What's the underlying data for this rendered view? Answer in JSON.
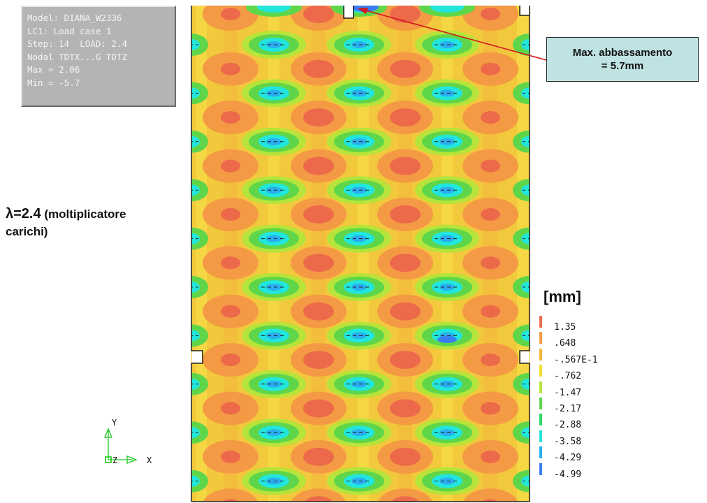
{
  "info": {
    "lines": [
      "Model: DIANA_W2336",
      "LC1: Load case 1",
      "Step: 14  LOAD: 2.4",
      "Nodal TDTX...G TDTZ",
      "Max = 2.06",
      "Min = -5.7"
    ]
  },
  "annotation": {
    "lambda_symbol_value": "λ=2.4",
    "lambda_desc_part1": " (moltiplicatore",
    "lambda_desc_part2": "carichi)",
    "callout_line1": "Max. abbassamento",
    "callout_line2": "= 5.7mm"
  },
  "legend": {
    "unit": "[mm]",
    "levels": [
      {
        "label": "1.35",
        "color": "#ec6a4a"
      },
      {
        "label": ".648",
        "color": "#f49a44"
      },
      {
        "label": "-.567E-1",
        "color": "#f4b63a"
      },
      {
        "label": "-.762",
        "color": "#f2de2c"
      },
      {
        "label": "-1.47",
        "color": "#b6e43a"
      },
      {
        "label": "-2.17",
        "color": "#5fd64a"
      },
      {
        "label": "-2.88",
        "color": "#2ed866"
      },
      {
        "label": "-3.58",
        "color": "#22e6dc"
      },
      {
        "label": "-4.29",
        "color": "#28aef0"
      },
      {
        "label": "-4.99",
        "color": "#3a7cf2"
      }
    ]
  },
  "axes": {
    "y_label": "Y",
    "x_label": "X",
    "z_label": "Z"
  },
  "contour": {
    "colors": {
      "background": "#f2c83c",
      "warm": "#f49a44",
      "hot": "#ec6a4a",
      "green": "#5fd64a",
      "lightgreen": "#b6e43a",
      "cyan": "#22e6dc",
      "blue": "#3a7cf2"
    }
  }
}
